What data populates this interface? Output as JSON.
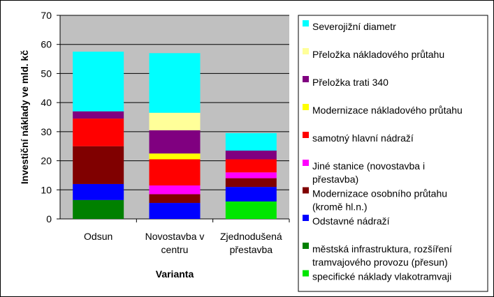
{
  "chart_data": {
    "type": "bar",
    "stacked": true,
    "categories": [
      [
        "Odsun"
      ],
      [
        "Novostavba v",
        "centru"
      ],
      [
        "Zjednodušená",
        "přestavba"
      ]
    ],
    "xlabel": "Varianta",
    "ylabel": "Investiční náklady ve mld. kč",
    "ylim": [
      0,
      70
    ],
    "yticks": [
      0,
      10,
      20,
      30,
      40,
      50,
      60,
      70
    ],
    "grid": true,
    "legend_position": "right",
    "series": [
      {
        "name": [
          "městská infrastruktura, rozšíření",
          "tramvajového provozu (přesun)"
        ],
        "color": "#008000",
        "values": [
          6.5,
          0,
          0
        ]
      },
      {
        "name": [
          "specifické náklady vlakotramvaji"
        ],
        "color": "#00e600",
        "values": [
          0,
          0,
          6
        ]
      },
      {
        "name": [
          "Odstavné nádraží"
        ],
        "color": "#0000ff",
        "values": [
          5.5,
          5.5,
          5
        ]
      },
      {
        "name": [
          "Modernizace osobního průtahu",
          "(kromě hl.n.)"
        ],
        "color": "#800000",
        "values": [
          13,
          3,
          3
        ]
      },
      {
        "name": [
          "Jiné stanice (novostavba i",
          "přestavba)"
        ],
        "color": "#ff00ff",
        "values": [
          0,
          3,
          2
        ]
      },
      {
        "name": [
          "samotný hlavní nádraží"
        ],
        "color": "#ff0000",
        "values": [
          9.5,
          9,
          4.5
        ]
      },
      {
        "name": [
          "Modernizace nákladového průtahu"
        ],
        "color": "#ffff00",
        "values": [
          0,
          2,
          0
        ]
      },
      {
        "name": [
          "Přeložka trati 340"
        ],
        "color": "#800080",
        "values": [
          2.5,
          8,
          3
        ]
      },
      {
        "name": [
          "Přeložka nákladového průtahu"
        ],
        "color": "#ffff99",
        "values": [
          0,
          6,
          0
        ]
      },
      {
        "name": [
          "Severojižní diametr"
        ],
        "color": "#00ffff",
        "values": [
          20.5,
          20.5,
          6
        ]
      }
    ],
    "legend_order": [
      9,
      8,
      7,
      6,
      5,
      4,
      3,
      2,
      0,
      1
    ]
  }
}
